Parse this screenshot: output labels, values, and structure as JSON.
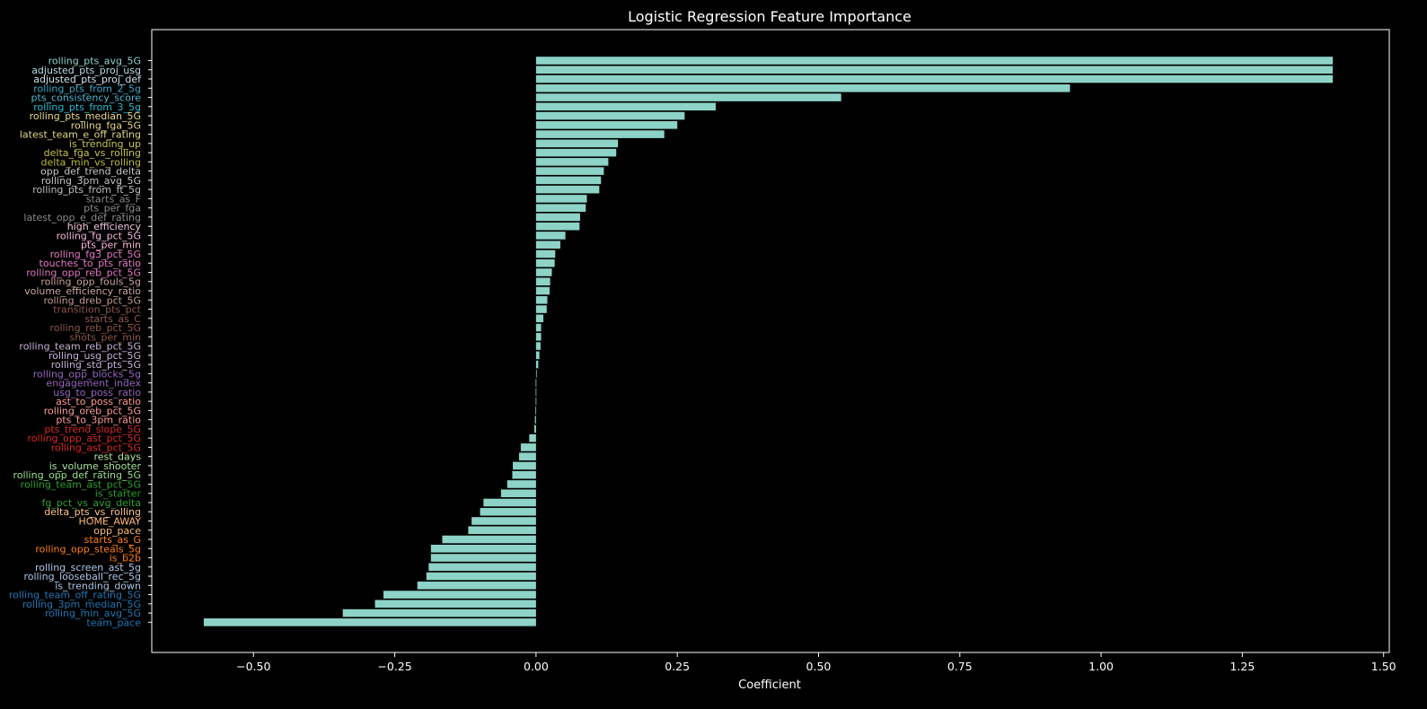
{
  "chart_data": {
    "type": "bar",
    "orientation": "horizontal",
    "title": "Logistic Regression Feature Importance",
    "xlabel": "Coefficient",
    "ylabel": "",
    "xlim": [
      -0.68,
      1.51
    ],
    "xticks": [
      -0.5,
      -0.25,
      0.0,
      0.25,
      0.5,
      0.75,
      1.0,
      1.25,
      1.5
    ],
    "xtick_labels": [
      "−0.50",
      "−0.25",
      "0.00",
      "0.25",
      "0.50",
      "0.75",
      "1.00",
      "1.25",
      "1.50"
    ],
    "grid": false,
    "colors": {
      "background": "#000000",
      "bar": "#8dd3c7",
      "axes": "#ffffff"
    },
    "categories": [
      "rolling_pts_avg_5G",
      "adjusted_pts_proj_usg",
      "adjusted_pts_proj_def",
      "rolling_pts_from_2_5g",
      "pts_consistency_score",
      "rolling_pts_from_3_5g",
      "rolling_pts_median_5G",
      "rolling_fga_5G",
      "latest_team_e_off_rating",
      "is_trending_up",
      "delta_fga_vs_rolling",
      "delta_min_vs_rolling",
      "opp_def_trend_delta",
      "rolling_3pm_avg_5G",
      "rolling_pts_from_ft_5g",
      "starts_as_F",
      "pts_per_fga",
      "latest_opp_e_def_rating",
      "high_efficiency",
      "rolling_fg_pct_5G",
      "pts_per_min",
      "rolling_fg3_pct_5G",
      "touches_to_pts_ratio",
      "rolling_opp_reb_pct_5G",
      "rolling_opp_fouls_5g",
      "volume_efficiency_ratio",
      "rolling_dreb_pct_5G",
      "transition_pts_pct",
      "starts_as_C",
      "rolling_reb_pct_5G",
      "shots_per_min",
      "rolling_team_reb_pct_5G",
      "rolling_usg_pct_5G",
      "rolling_std_pts_5G",
      "rolling_opp_blocks_5g",
      "engagement_index",
      "usg_to_poss_ratio",
      "ast_to_poss_ratio",
      "rolling_oreb_pct_5G",
      "pts_to_3pm_ratio",
      "pts_trend_slope_5G",
      "rolling_opp_ast_pct_5G",
      "rolling_ast_pct_5G",
      "rest_days",
      "is_volume_shooter",
      "rolling_opp_def_rating_5G",
      "rolling_team_ast_pct_5G",
      "is_starter",
      "fg_pct_vs_avg_delta",
      "delta_pts_vs_rolling",
      "HOME_AWAY",
      "opp_pace",
      "starts_as_G",
      "rolling_opp_steals_5g",
      "is_b2b",
      "rolling_screen_ast_5g",
      "rolling_looseball_rec_5g",
      "is_trending_down",
      "rolling_team_off_rating_5G",
      "rolling_3pm_median_5G",
      "rolling_min_avg_5G",
      "team_pace"
    ],
    "values": [
      1.41,
      1.41,
      1.41,
      0.945,
      0.54,
      0.318,
      0.263,
      0.25,
      0.227,
      0.145,
      0.142,
      0.128,
      0.12,
      0.115,
      0.112,
      0.09,
      0.088,
      0.078,
      0.077,
      0.052,
      0.043,
      0.034,
      0.033,
      0.028,
      0.025,
      0.024,
      0.02,
      0.019,
      0.013,
      0.009,
      0.009,
      0.008,
      0.006,
      0.004,
      0.001,
      0.0,
      0.0,
      0.0,
      -0.001,
      -0.002,
      -0.003,
      -0.012,
      -0.027,
      -0.03,
      -0.041,
      -0.042,
      -0.051,
      -0.062,
      -0.093,
      -0.099,
      -0.114,
      -0.12,
      -0.166,
      -0.186,
      -0.186,
      -0.19,
      -0.194,
      -0.21,
      -0.27,
      -0.285,
      -0.342,
      -0.588
    ],
    "label_colors": [
      "#8dd3c7",
      "#b8dce8",
      "#cfe4ec",
      "#3aa9c9",
      "#4fb8d0",
      "#22bcd4",
      "#e8d98b",
      "#e6d48a",
      "#e0d58a",
      "#c5c548",
      "#c9c24e",
      "#bcbc3e",
      "#c8c8c8",
      "#c4c4c4",
      "#bfbfbf",
      "#888888",
      "#8c8c8c",
      "#8a8a8a",
      "#f2c8dd",
      "#f5b8d5",
      "#f7b6d2",
      "#e377c2",
      "#e07bc4",
      "#de79c0",
      "#c8a49c",
      "#c7a8a0",
      "#c49c94",
      "#8c564b",
      "#8f5a50",
      "#8c564b",
      "#8c564b",
      "#c5b0d5",
      "#c2b3d6",
      "#c5b0d5",
      "#9467bd",
      "#9467bd",
      "#9467bd",
      "#ff9896",
      "#ff9c99",
      "#ff9896",
      "#d62728",
      "#d62728",
      "#d62728",
      "#b3e3a0",
      "#a9e39a",
      "#98df8a",
      "#2ca02c",
      "#2ca02c",
      "#2ca02c",
      "#ffc58a",
      "#ffbb78",
      "#ffbb78",
      "#ff7f0e",
      "#ff7f0e",
      "#ff7f0e",
      "#aec7e8",
      "#aec7e8",
      "#aec7e8",
      "#1f77b4",
      "#1f77b4",
      "#1f77b4",
      "#1f77b4"
    ]
  }
}
